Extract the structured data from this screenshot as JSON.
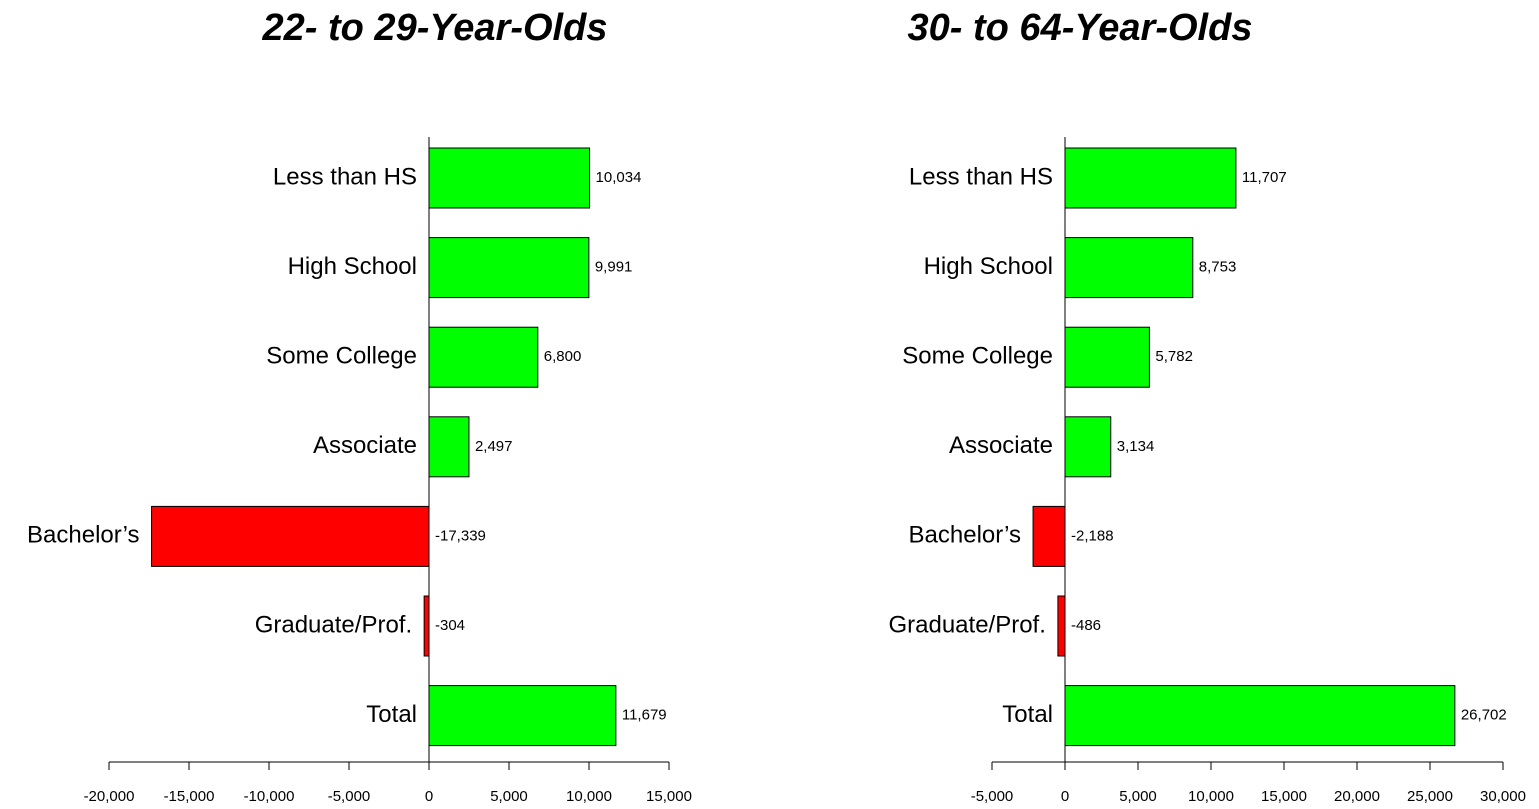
{
  "chart_data": [
    {
      "type": "barh",
      "title": "22- to 29-Year-Olds",
      "categories": [
        "Less than HS",
        "High School",
        "Some College",
        "Associate",
        "Bachelor’s",
        "Graduate/Prof.",
        "Total"
      ],
      "values": [
        10034,
        9991,
        6800,
        2497,
        -17339,
        -304,
        11679
      ],
      "value_labels": [
        "10,034",
        "9,991",
        "6,800",
        "2,497",
        "-17,339",
        "-304",
        "11,679"
      ],
      "colors": [
        "#00ff00",
        "#00ff00",
        "#00ff00",
        "#00ff00",
        "#ff0000",
        "#ff0000",
        "#00ff00"
      ],
      "xlim": [
        -20000,
        15000
      ],
      "xticks": [
        {
          "value": -20000,
          "label": "-20,000"
        },
        {
          "value": -15000,
          "label": "-15,000"
        },
        {
          "value": -10000,
          "label": "-10,000"
        },
        {
          "value": -5000,
          "label": "-5,000"
        },
        0,
        {
          "value": 5000,
          "label": "5,000"
        },
        {
          "value": 10000,
          "label": "10,000"
        },
        {
          "value": 15000,
          "label": "15,000"
        }
      ]
    },
    {
      "type": "barh",
      "title": "30- to 64-Year-Olds",
      "categories": [
        "Less than HS",
        "High School",
        "Some College",
        "Associate",
        "Bachelor’s",
        "Graduate/Prof.",
        "Total"
      ],
      "values": [
        11707,
        8753,
        5782,
        3134,
        -2188,
        -486,
        26702
      ],
      "value_labels": [
        "11,707",
        "8,753",
        "5,782",
        "3,134",
        "-2,188",
        "-486",
        "26,702"
      ],
      "colors": [
        "#00ff00",
        "#00ff00",
        "#00ff00",
        "#00ff00",
        "#ff0000",
        "#ff0000",
        "#00ff00"
      ],
      "xlim": [
        -5000,
        30000
      ],
      "xticks": [
        {
          "value": -5000,
          "label": "-5,000"
        },
        0,
        {
          "value": 5000,
          "label": "5,000"
        },
        {
          "value": 10000,
          "label": "10,000"
        },
        {
          "value": 15000,
          "label": "15,000"
        },
        {
          "value": 20000,
          "label": "20,000"
        },
        {
          "value": 25000,
          "label": "25,000"
        },
        {
          "value": 30000,
          "label": "30,000"
        }
      ]
    }
  ]
}
